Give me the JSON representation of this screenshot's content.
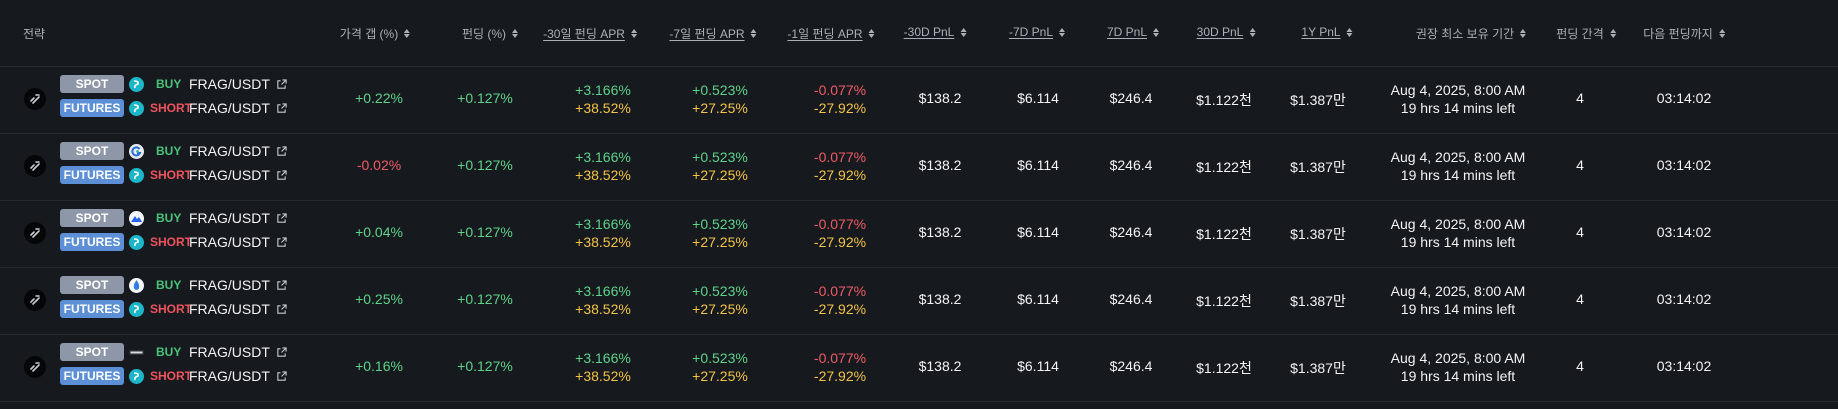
{
  "header": {
    "strategy": "전략",
    "price_gap": "가격 갭 (%)",
    "funding": "펀딩 (%)",
    "apr30": "-30일 펀딩 APR",
    "apr7": "-7일 펀딩 APR",
    "apr1": "-1일 펀딩 APR",
    "pnl30": "-30D PnL",
    "pnl7n": "-7D PnL",
    "pnl7": "7D PnL",
    "pnl30p": "30D PnL",
    "pnl1y": "1Y PnL",
    "hold": "권장 최소 보유 기간",
    "interval": "펀딩 간격",
    "next": "다음 펀딩까지"
  },
  "labels": {
    "spot": "SPOT",
    "futures": "FUTURES",
    "buy": "BUY",
    "short": "SHORT"
  },
  "colors": {
    "background": "#161a1e",
    "spot_badge": "#8d97a8",
    "futures_badge": "#5c8fd6",
    "positive": "#5ed28a",
    "negative": "#f05b66",
    "yellow": "#f3c248"
  },
  "rows": [
    {
      "spot_exchange_icon": "swap-exchange-icon",
      "spot_pair": "FRAG/USDT",
      "futures_pair": "FRAG/USDT",
      "price_gap": "+0.22%",
      "price_gap_sign": "positive",
      "funding": "+0.127%",
      "apr30_top": "+3.166%",
      "apr30_bottom": "+38.52%",
      "apr7_top": "+0.523%",
      "apr7_bottom": "+27.25%",
      "apr1_top": "-0.077%",
      "apr1_bottom": "-27.92%",
      "pnl30": "$138.2",
      "pnl7n": "$6.114",
      "pnl7": "$246.4",
      "pnl30p": "$1.122천",
      "pnl1y": "$1.387만",
      "hold_date": "Aug 4, 2025, 8:00 AM",
      "hold_left": "19 hrs 14 mins left",
      "interval": "4",
      "next": "03:14:02"
    },
    {
      "spot_exchange_icon": "gate-exchange-icon",
      "spot_pair": "FRAG/USDT",
      "futures_pair": "FRAG/USDT",
      "price_gap": "-0.02%",
      "price_gap_sign": "negative",
      "funding": "+0.127%",
      "apr30_top": "+3.166%",
      "apr30_bottom": "+38.52%",
      "apr7_top": "+0.523%",
      "apr7_bottom": "+27.25%",
      "apr1_top": "-0.077%",
      "apr1_bottom": "-27.92%",
      "pnl30": "$138.2",
      "pnl7n": "$6.114",
      "pnl7": "$246.4",
      "pnl30p": "$1.122천",
      "pnl1y": "$1.387만",
      "hold_date": "Aug 4, 2025, 8:00 AM",
      "hold_left": "19 hrs 14 mins left",
      "interval": "4",
      "next": "03:14:02"
    },
    {
      "spot_exchange_icon": "mountain-exchange-icon",
      "spot_pair": "FRAG/USDT",
      "futures_pair": "FRAG/USDT",
      "price_gap": "+0.04%",
      "price_gap_sign": "positive",
      "funding": "+0.127%",
      "apr30_top": "+3.166%",
      "apr30_bottom": "+38.52%",
      "apr7_top": "+0.523%",
      "apr7_bottom": "+27.25%",
      "apr1_top": "-0.077%",
      "apr1_bottom": "-27.92%",
      "pnl30": "$138.2",
      "pnl7n": "$6.114",
      "pnl7": "$246.4",
      "pnl30p": "$1.122천",
      "pnl1y": "$1.387만",
      "hold_date": "Aug 4, 2025, 8:00 AM",
      "hold_left": "19 hrs 14 mins left",
      "interval": "4",
      "next": "03:14:02"
    },
    {
      "spot_exchange_icon": "drop-exchange-icon",
      "spot_pair": "FRAG/USDT",
      "futures_pair": "FRAG/USDT",
      "price_gap": "+0.25%",
      "price_gap_sign": "positive",
      "funding": "+0.127%",
      "apr30_top": "+3.166%",
      "apr30_bottom": "+38.52%",
      "apr7_top": "+0.523%",
      "apr7_bottom": "+27.25%",
      "apr1_top": "-0.077%",
      "apr1_bottom": "-27.92%",
      "pnl30": "$138.2",
      "pnl7n": "$6.114",
      "pnl7": "$246.4",
      "pnl30p": "$1.122천",
      "pnl1y": "$1.387만",
      "hold_date": "Aug 4, 2025, 8:00 AM",
      "hold_left": "19 hrs 14 mins left",
      "interval": "4",
      "next": "03:14:02"
    },
    {
      "spot_exchange_icon": "wordmark-exchange-icon",
      "spot_pair": "FRAG/USDT",
      "futures_pair": "FRAG/USDT",
      "price_gap": "+0.16%",
      "price_gap_sign": "positive",
      "funding": "+0.127%",
      "apr30_top": "+3.166%",
      "apr30_bottom": "+38.52%",
      "apr7_top": "+0.523%",
      "apr7_bottom": "+27.25%",
      "apr1_top": "-0.077%",
      "apr1_bottom": "-27.92%",
      "pnl30": "$138.2",
      "pnl7n": "$6.114",
      "pnl7": "$246.4",
      "pnl30p": "$1.122천",
      "pnl1y": "$1.387만",
      "hold_date": "Aug 4, 2025, 8:00 AM",
      "hold_left": "19 hrs 14 mins left",
      "interval": "4",
      "next": "03:14:02"
    }
  ]
}
